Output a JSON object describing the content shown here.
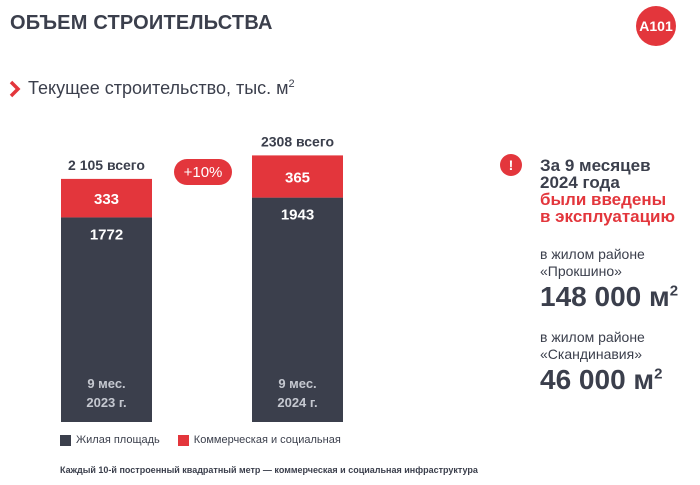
{
  "header": {
    "title": "ОБЪЕМ СТРОИТЕЛЬСТВА",
    "logo_text": "A101"
  },
  "subtitle": {
    "text": "Текущее строительство, тыс. м",
    "superscript": "2"
  },
  "chart_data": {
    "type": "bar",
    "stacked": true,
    "categories": [
      "9 мес.\n2023 г.",
      "9 мес.\n2024 г."
    ],
    "category_lines": [
      [
        "9 мес.",
        "2023 г."
      ],
      [
        "9 мес.",
        "2024 г."
      ]
    ],
    "series": [
      {
        "name": "Жилая площадь",
        "values": [
          1772,
          1943
        ],
        "value_labels": [
          "1772",
          "1943"
        ],
        "color": "#3b3f4c"
      },
      {
        "name": "Коммерческая и социальная",
        "values": [
          333,
          365
        ],
        "value_labels": [
          "333",
          "365"
        ],
        "color": "#e3363c"
      }
    ],
    "totals": [
      2105,
      2308
    ],
    "total_labels": [
      "2 105 всего",
      "2308 всего"
    ],
    "growth_label": "+10%",
    "legend_position": "bottom-left",
    "grid": false
  },
  "legend": {
    "residential": "Жилая площадь",
    "commercial": "Коммерческая и социальная"
  },
  "footnote": "Каждый 10-й построенный квадратный метр — коммерческая и социальная инфраструктура",
  "info": {
    "alert_symbol": "!",
    "line1": "За 9 месяцев",
    "line2": "2024 года",
    "line3": "были введены",
    "line4": "в эксплуатацию"
  },
  "districts": [
    {
      "label1": "в жилом районе",
      "label2": "«Прокшино»",
      "value": "148 000 м",
      "unit_sup": "2"
    },
    {
      "label1": "в жилом районе",
      "label2": "«Скандинавия»",
      "value": "46 000 м",
      "unit_sup": "2"
    }
  ],
  "colors": {
    "accent": "#e3363c",
    "dark": "#3b3f4c",
    "category_text": "#c5c8d0"
  }
}
